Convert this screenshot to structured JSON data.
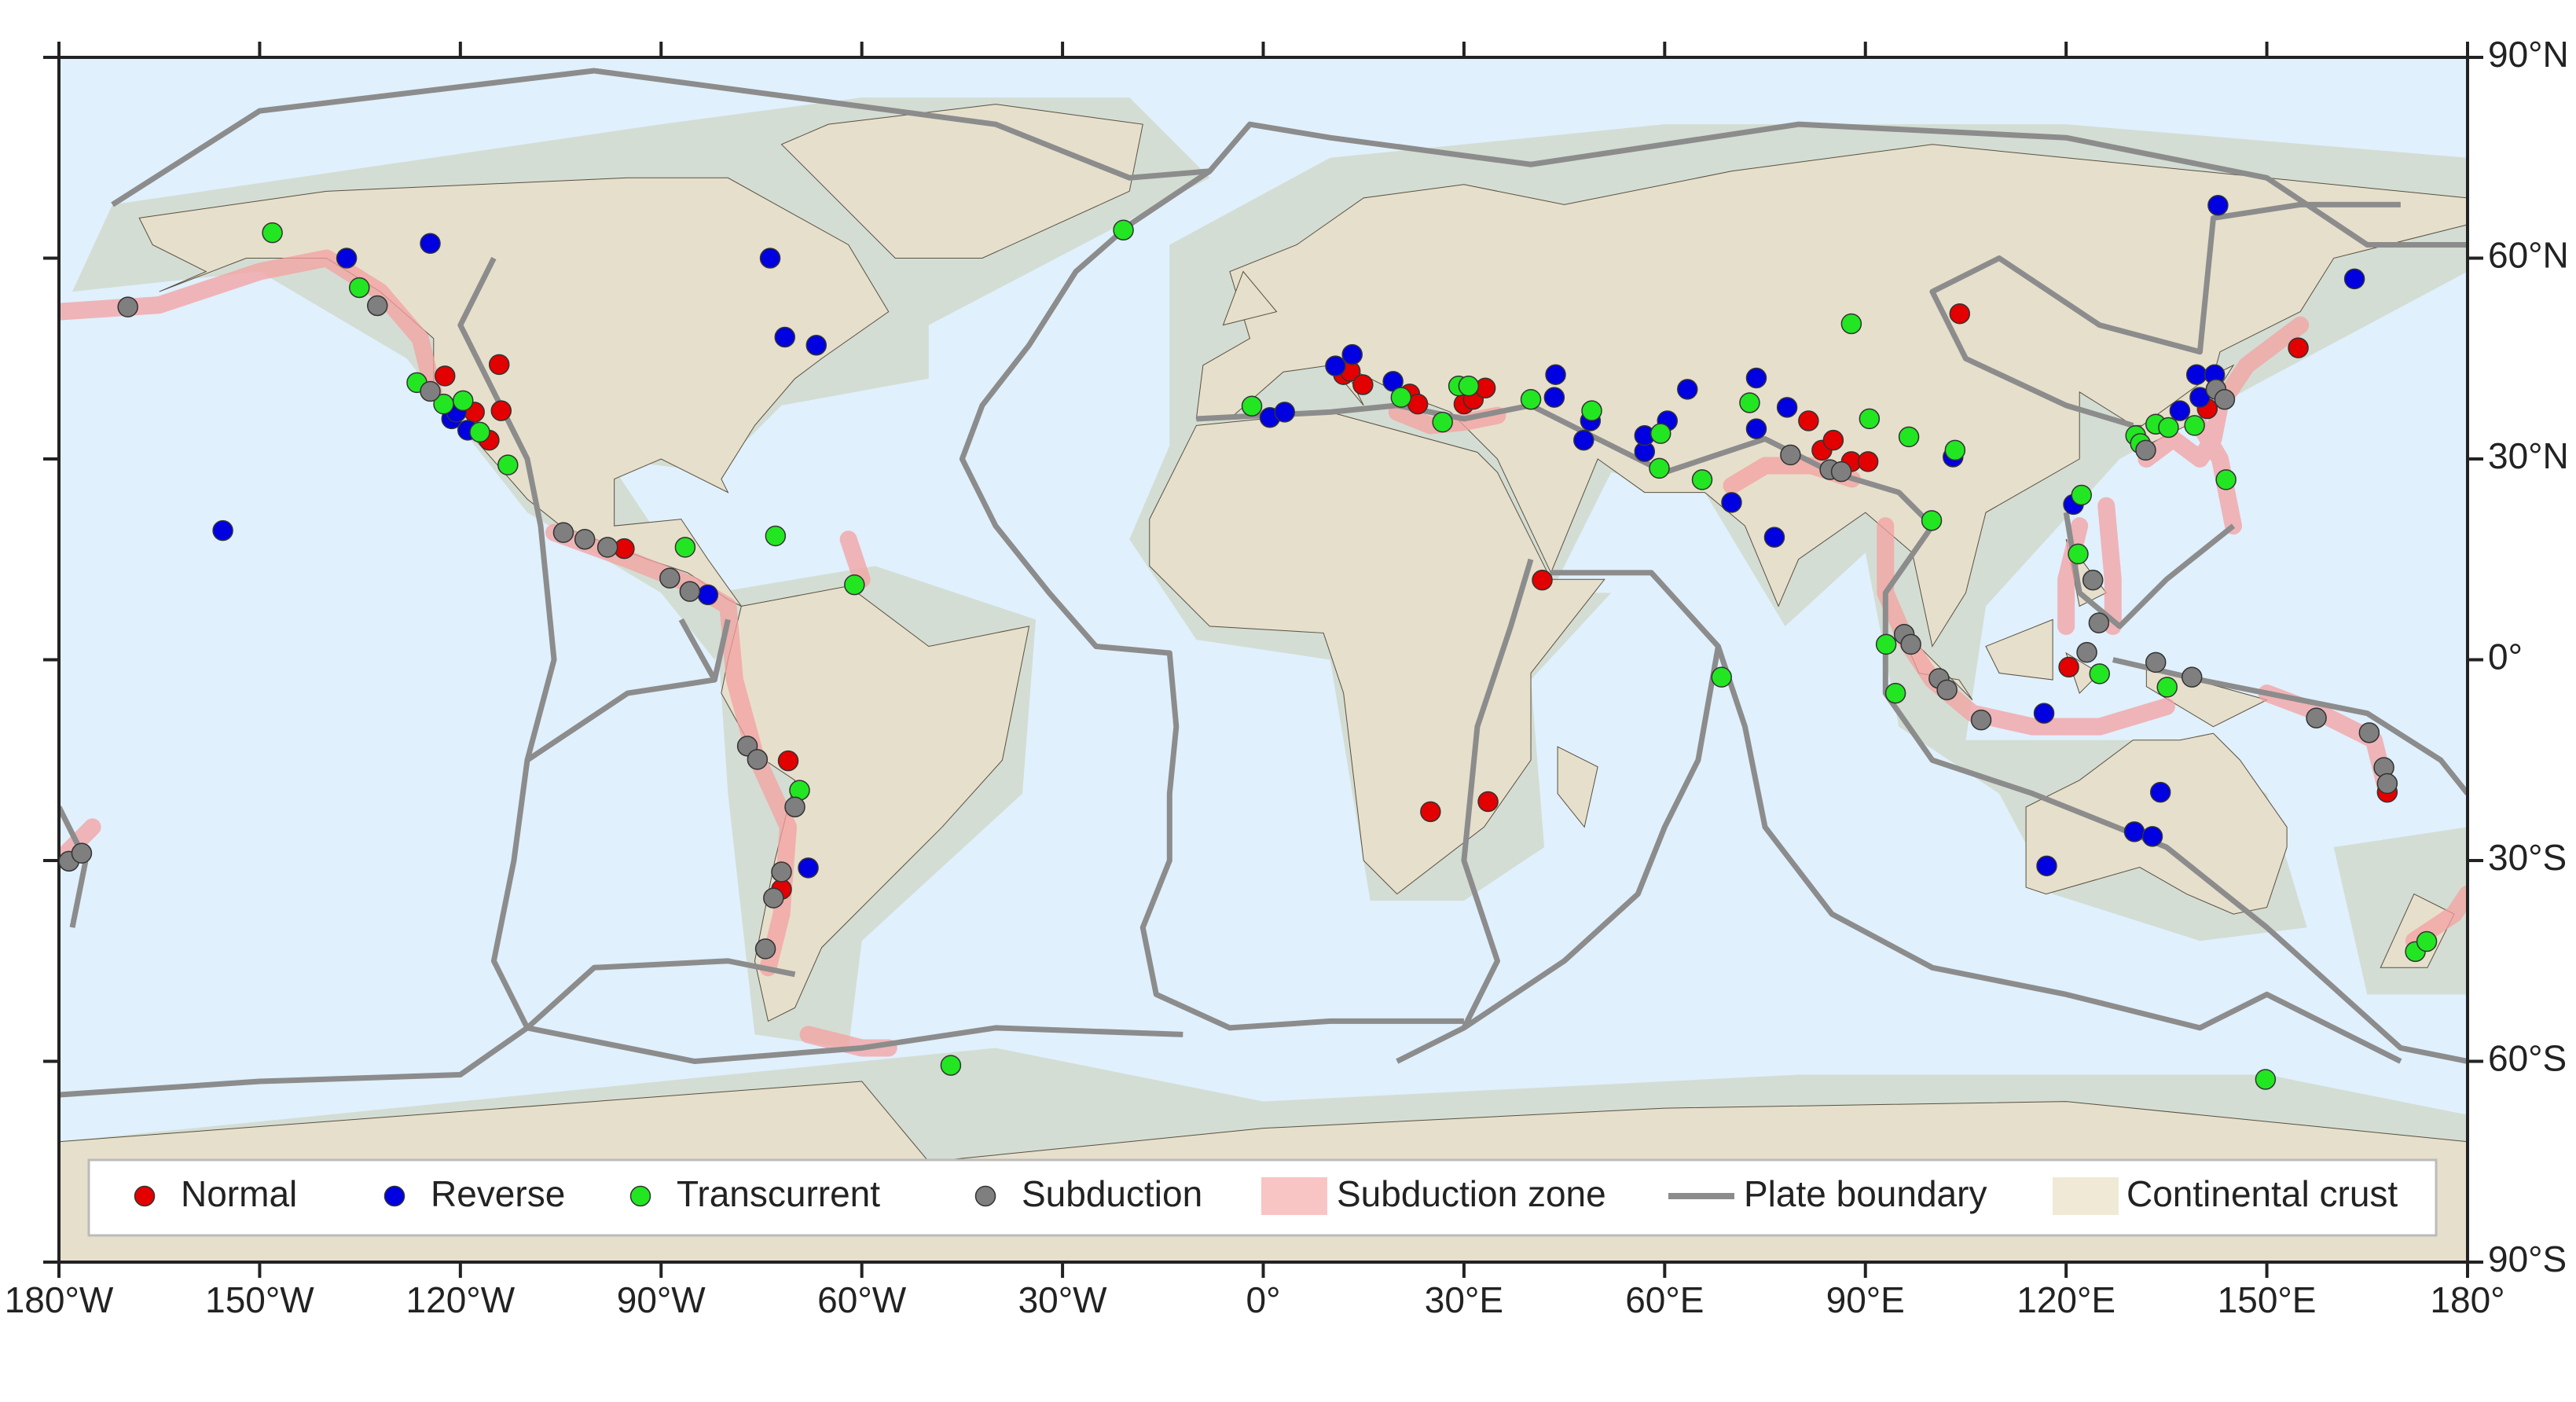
{
  "chart_data": {
    "type": "scatter",
    "xlim": [
      -180,
      180
    ],
    "ylim": [
      -90,
      90
    ],
    "xticks": [
      {
        "value": -180,
        "label": "180°W"
      },
      {
        "value": -150,
        "label": "150°W"
      },
      {
        "value": -120,
        "label": "120°W"
      },
      {
        "value": -90,
        "label": "90°W"
      },
      {
        "value": -60,
        "label": "60°W"
      },
      {
        "value": -30,
        "label": "30°W"
      },
      {
        "value": 0,
        "label": "0°"
      },
      {
        "value": 30,
        "label": "30°E"
      },
      {
        "value": 60,
        "label": "60°E"
      },
      {
        "value": 90,
        "label": "90°E"
      },
      {
        "value": 120,
        "label": "120°E"
      },
      {
        "value": 150,
        "label": "150°E"
      },
      {
        "value": 180,
        "label": "180°"
      }
    ],
    "yticks": [
      {
        "value": 90,
        "label": "90°N"
      },
      {
        "value": 60,
        "label": "60°N"
      },
      {
        "value": 30,
        "label": "30°N"
      },
      {
        "value": 0,
        "label": "0°"
      },
      {
        "value": -30,
        "label": "30°S"
      },
      {
        "value": -60,
        "label": "60°S"
      },
      {
        "value": -90,
        "label": "90°S"
      }
    ],
    "map_layers": [
      "Subduction zone",
      "Plate boundary",
      "Continental crust"
    ],
    "series": [
      {
        "name": "Normal",
        "color": "#e30000",
        "x": [
          -122.3,
          -114.2,
          -117.9,
          -113.9,
          -115.7,
          -95.5,
          -71.0,
          -72.0,
          12.0,
          13.0,
          14.9,
          21.9,
          23.1,
          30.0,
          31.4,
          33.2,
          41.7,
          25.0,
          33.6,
          81.5,
          83.5,
          85.2,
          87.9,
          90.4,
          104.1,
          120.4,
          141.1,
          154.7,
          168.0
        ],
        "y": [
          42.4,
          44.1,
          37.0,
          37.2,
          32.8,
          16.6,
          -15.1,
          -34.3,
          42.6,
          43.1,
          41.1,
          39.7,
          38.2,
          38.2,
          38.9,
          40.6,
          11.9,
          -22.7,
          -21.2,
          35.7,
          31.3,
          32.8,
          29.6,
          29.6,
          51.7,
          -1.1,
          37.5,
          46.6,
          -19.8
        ]
      },
      {
        "name": "Reverse",
        "color": "#0000e0",
        "x": [
          -124.5,
          -137.0,
          -155.5,
          -73.7,
          -71.5,
          -66.8,
          -121.3,
          -118.9,
          -120.6,
          -83.0,
          -68.0,
          10.8,
          13.3,
          19.4,
          1.0,
          3.2,
          43.7,
          43.5,
          47.9,
          48.9,
          57.0,
          60.4,
          63.4,
          57.0,
          70.0,
          73.7,
          73.7,
          78.3,
          76.4,
          103.1,
          116.7,
          117.1,
          121.1,
          130.2,
          132.9,
          134.1,
          142.7,
          139.5,
          142.2,
          140.0,
          137.0,
          163.1
        ],
        "y": [
          62.2,
          60.0,
          19.3,
          60.0,
          48.2,
          47.0,
          36.0,
          34.3,
          37.0,
          9.7,
          -31.1,
          43.9,
          45.6,
          41.6,
          36.2,
          37.0,
          42.6,
          39.2,
          32.8,
          35.7,
          31.1,
          35.7,
          40.4,
          33.5,
          23.5,
          42.1,
          34.5,
          37.7,
          18.3,
          30.3,
          -8.0,
          -30.8,
          23.2,
          -25.7,
          -26.4,
          -19.8,
          67.9,
          42.6,
          42.6,
          39.2,
          37.2,
          56.9
        ]
      },
      {
        "name": "Transcurrent",
        "color": "#22e622",
        "x": [
          -148.1,
          -135.1,
          -126.5,
          -122.5,
          -119.6,
          -117.1,
          -112.9,
          -86.4,
          -72.9,
          -61.1,
          -69.3,
          -46.7,
          -20.9,
          -1.7,
          20.6,
          26.8,
          29.2,
          30.7,
          40.0,
          49.1,
          59.2,
          59.4,
          65.6,
          68.5,
          72.7,
          87.9,
          90.6,
          96.5,
          103.4,
          99.9,
          93.1,
          94.5,
          122.3,
          121.8,
          125.0,
          130.4,
          131.1,
          133.4,
          135.3,
          139.2,
          143.9,
          135.1,
          149.8,
          172.2,
          173.9
        ],
        "y": [
          63.8,
          55.6,
          41.4,
          38.2,
          38.7,
          34.0,
          29.1,
          16.8,
          18.5,
          11.2,
          -19.5,
          -60.6,
          64.2,
          37.9,
          39.2,
          35.5,
          40.9,
          40.9,
          38.9,
          37.2,
          28.6,
          33.8,
          26.9,
          -2.6,
          38.4,
          50.2,
          36.0,
          33.3,
          31.3,
          20.8,
          2.3,
          -5.0,
          24.6,
          15.8,
          -2.1,
          33.5,
          32.3,
          35.2,
          34.7,
          35.0,
          26.9,
          -4.1,
          -62.7,
          -43.6,
          -42.1
        ]
      },
      {
        "name": "Subduction",
        "color": "#7f7f7f",
        "x": [
          -169.7,
          -132.4,
          -124.5,
          -178.5,
          -176.6,
          -104.6,
          -101.4,
          -98.0,
          -88.7,
          -85.7,
          -77.1,
          -75.6,
          -70.0,
          -72.0,
          -73.2,
          -74.4,
          78.8,
          84.7,
          86.4,
          95.8,
          96.8,
          101.0,
          102.2,
          107.3,
          124.0,
          124.9,
          123.1,
          133.4,
          138.8,
          157.4,
          165.3,
          167.5,
          168.0,
          131.9,
          142.4,
          143.7
        ],
        "y": [
          52.7,
          52.9,
          40.1,
          -30.1,
          -28.9,
          19.0,
          18.0,
          16.8,
          12.2,
          10.2,
          -12.9,
          -14.9,
          -22.0,
          -31.7,
          -35.6,
          -43.2,
          30.6,
          28.4,
          28.1,
          3.8,
          2.3,
          -2.8,
          -4.5,
          -9.0,
          11.9,
          5.5,
          1.1,
          -0.4,
          -2.6,
          -8.7,
          -10.9,
          -16.1,
          -18.5,
          31.3,
          40.4,
          38.9
        ]
      }
    ]
  }
}
